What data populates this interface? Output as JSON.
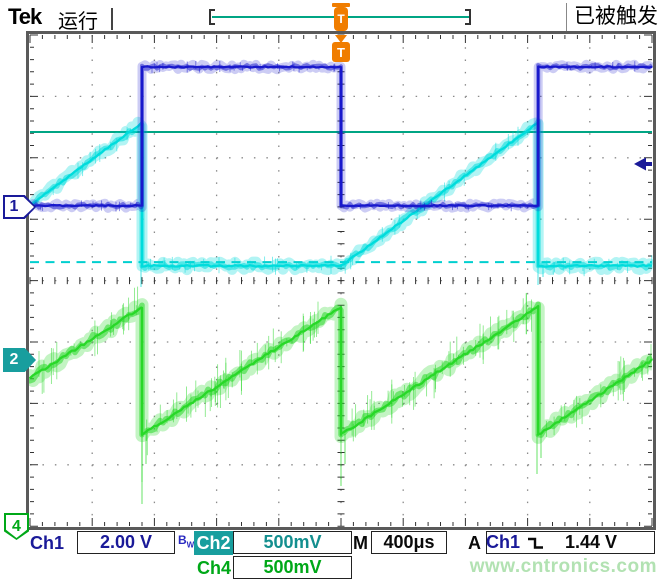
{
  "header": {
    "brand": "Tek",
    "acq_status": "运行",
    "trigger_status": "已被触发",
    "trigger_marker_label": "T"
  },
  "markers": {
    "ch1": "1",
    "ch2": "2",
    "ch4": "4"
  },
  "colors": {
    "ch1_trace": "#1818cc",
    "ch2_trace": "#00dcdc",
    "ch4_trace": "#28d828",
    "ch1_text": "#1a1a99",
    "ch2_text": "#148f8f",
    "ch4_text": "#00a818",
    "ref_solid": "#00a584",
    "ref_dashed": "#00cfcf",
    "trigger_marker": "#f07d00",
    "watermark": "#b2e2b2"
  },
  "chart_data": {
    "type": "line",
    "subtype": "oscilloscope",
    "h_divisions": 10,
    "v_divisions": 8,
    "timebase": "400μs/div",
    "trigger": {
      "source": "Ch1",
      "slope": "falling",
      "level": "1.44 V",
      "position_div_from_left": 5.0,
      "level_div_from_top": 2.1
    },
    "series": [
      {
        "name": "Ch1",
        "scale": "2.00 V/div",
        "bandwidth_limit": true,
        "shape": "square",
        "zero_div_from_top": 2.78,
        "levels_v": {
          "low": 0.0,
          "high": 4.5
        },
        "period_us": 2540,
        "duty_pct": 50,
        "points_div": [
          [
            0,
            2.78
          ],
          [
            1.8,
            2.78
          ],
          [
            1.8,
            0.52
          ],
          [
            5.0,
            0.52
          ],
          [
            5.0,
            2.78
          ],
          [
            8.17,
            2.78
          ],
          [
            8.17,
            0.52
          ],
          [
            10,
            0.52
          ]
        ]
      },
      {
        "name": "Ch2",
        "scale": "500mV/div",
        "shape": "gated-ramp",
        "zero_div_from_top": 5.31,
        "levels_v": {
          "base": 0.78,
          "peak": 1.94
        },
        "points_div": [
          [
            0,
            2.77
          ],
          [
            1.8,
            1.43
          ],
          [
            1.8,
            3.76
          ],
          [
            5.0,
            3.76
          ],
          [
            8.17,
            1.43
          ],
          [
            8.17,
            3.76
          ],
          [
            10,
            3.76
          ]
        ]
      },
      {
        "name": "Ch4",
        "scale": "500mV/div",
        "shape": "sawtooth",
        "zero_div_from_top": 8.01,
        "levels_v": {
          "base": 0.75,
          "peak": 1.79
        },
        "period_us": 1270,
        "points_div": [
          [
            0,
            5.59
          ],
          [
            1.8,
            4.43
          ],
          [
            1.8,
            6.51
          ],
          [
            5.0,
            4.43
          ],
          [
            5.0,
            6.51
          ],
          [
            8.17,
            4.43
          ],
          [
            8.17,
            6.51
          ],
          [
            10,
            5.29
          ]
        ]
      }
    ],
    "reference_lines": [
      {
        "style": "solid",
        "color": "#00a584",
        "y_div_from_top": 1.58
      },
      {
        "style": "dashed",
        "color": "#00cfcf",
        "y_div_from_top": 3.7
      }
    ]
  },
  "readout": {
    "ch1_label": "Ch1",
    "ch1_scale": "2.00 V",
    "bw_label": "B",
    "bw_sub": "W",
    "ch2_label": "Ch2",
    "ch2_scale": "500mV",
    "ch4_label": "Ch4",
    "ch4_scale": "500mV",
    "m_label": "M",
    "m_value": "400μs",
    "a_label": "A",
    "a_source": "Ch1",
    "a_slope_icon": "falling-edge-icon",
    "a_level": "1.44 V",
    "watermark": "www.cntronics.com"
  }
}
